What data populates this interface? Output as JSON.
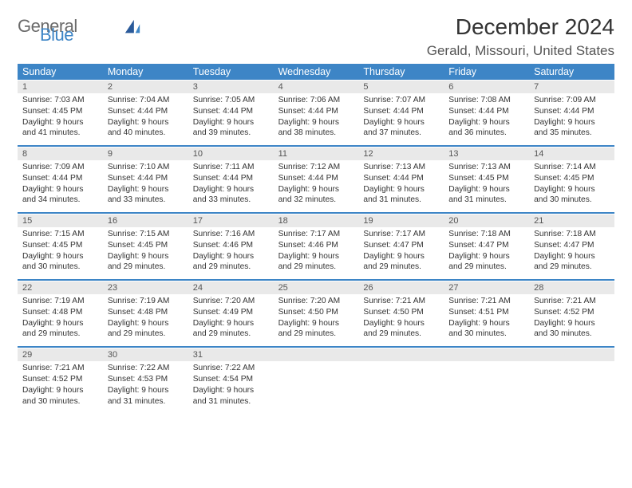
{
  "logo": {
    "word1": "General",
    "word2": "Blue"
  },
  "title": "December 2024",
  "location": "Gerald, Missouri, United States",
  "colors": {
    "header_bg": "#3d85c6",
    "header_text": "#ffffff",
    "daynum_bg": "#e9e9e9",
    "sep": "#3d85c6",
    "logo_gray": "#6a6a6a",
    "logo_blue": "#3d85c6"
  },
  "weekdays": [
    "Sunday",
    "Monday",
    "Tuesday",
    "Wednesday",
    "Thursday",
    "Friday",
    "Saturday"
  ],
  "weeks": [
    {
      "nums": [
        "1",
        "2",
        "3",
        "4",
        "5",
        "6",
        "7"
      ],
      "cells": [
        {
          "sunrise": "Sunrise: 7:03 AM",
          "sunset": "Sunset: 4:45 PM",
          "day1": "Daylight: 9 hours",
          "day2": "and 41 minutes."
        },
        {
          "sunrise": "Sunrise: 7:04 AM",
          "sunset": "Sunset: 4:44 PM",
          "day1": "Daylight: 9 hours",
          "day2": "and 40 minutes."
        },
        {
          "sunrise": "Sunrise: 7:05 AM",
          "sunset": "Sunset: 4:44 PM",
          "day1": "Daylight: 9 hours",
          "day2": "and 39 minutes."
        },
        {
          "sunrise": "Sunrise: 7:06 AM",
          "sunset": "Sunset: 4:44 PM",
          "day1": "Daylight: 9 hours",
          "day2": "and 38 minutes."
        },
        {
          "sunrise": "Sunrise: 7:07 AM",
          "sunset": "Sunset: 4:44 PM",
          "day1": "Daylight: 9 hours",
          "day2": "and 37 minutes."
        },
        {
          "sunrise": "Sunrise: 7:08 AM",
          "sunset": "Sunset: 4:44 PM",
          "day1": "Daylight: 9 hours",
          "day2": "and 36 minutes."
        },
        {
          "sunrise": "Sunrise: 7:09 AM",
          "sunset": "Sunset: 4:44 PM",
          "day1": "Daylight: 9 hours",
          "day2": "and 35 minutes."
        }
      ]
    },
    {
      "nums": [
        "8",
        "9",
        "10",
        "11",
        "12",
        "13",
        "14"
      ],
      "cells": [
        {
          "sunrise": "Sunrise: 7:09 AM",
          "sunset": "Sunset: 4:44 PM",
          "day1": "Daylight: 9 hours",
          "day2": "and 34 minutes."
        },
        {
          "sunrise": "Sunrise: 7:10 AM",
          "sunset": "Sunset: 4:44 PM",
          "day1": "Daylight: 9 hours",
          "day2": "and 33 minutes."
        },
        {
          "sunrise": "Sunrise: 7:11 AM",
          "sunset": "Sunset: 4:44 PM",
          "day1": "Daylight: 9 hours",
          "day2": "and 33 minutes."
        },
        {
          "sunrise": "Sunrise: 7:12 AM",
          "sunset": "Sunset: 4:44 PM",
          "day1": "Daylight: 9 hours",
          "day2": "and 32 minutes."
        },
        {
          "sunrise": "Sunrise: 7:13 AM",
          "sunset": "Sunset: 4:44 PM",
          "day1": "Daylight: 9 hours",
          "day2": "and 31 minutes."
        },
        {
          "sunrise": "Sunrise: 7:13 AM",
          "sunset": "Sunset: 4:45 PM",
          "day1": "Daylight: 9 hours",
          "day2": "and 31 minutes."
        },
        {
          "sunrise": "Sunrise: 7:14 AM",
          "sunset": "Sunset: 4:45 PM",
          "day1": "Daylight: 9 hours",
          "day2": "and 30 minutes."
        }
      ]
    },
    {
      "nums": [
        "15",
        "16",
        "17",
        "18",
        "19",
        "20",
        "21"
      ],
      "cells": [
        {
          "sunrise": "Sunrise: 7:15 AM",
          "sunset": "Sunset: 4:45 PM",
          "day1": "Daylight: 9 hours",
          "day2": "and 30 minutes."
        },
        {
          "sunrise": "Sunrise: 7:15 AM",
          "sunset": "Sunset: 4:45 PM",
          "day1": "Daylight: 9 hours",
          "day2": "and 29 minutes."
        },
        {
          "sunrise": "Sunrise: 7:16 AM",
          "sunset": "Sunset: 4:46 PM",
          "day1": "Daylight: 9 hours",
          "day2": "and 29 minutes."
        },
        {
          "sunrise": "Sunrise: 7:17 AM",
          "sunset": "Sunset: 4:46 PM",
          "day1": "Daylight: 9 hours",
          "day2": "and 29 minutes."
        },
        {
          "sunrise": "Sunrise: 7:17 AM",
          "sunset": "Sunset: 4:47 PM",
          "day1": "Daylight: 9 hours",
          "day2": "and 29 minutes."
        },
        {
          "sunrise": "Sunrise: 7:18 AM",
          "sunset": "Sunset: 4:47 PM",
          "day1": "Daylight: 9 hours",
          "day2": "and 29 minutes."
        },
        {
          "sunrise": "Sunrise: 7:18 AM",
          "sunset": "Sunset: 4:47 PM",
          "day1": "Daylight: 9 hours",
          "day2": "and 29 minutes."
        }
      ]
    },
    {
      "nums": [
        "22",
        "23",
        "24",
        "25",
        "26",
        "27",
        "28"
      ],
      "cells": [
        {
          "sunrise": "Sunrise: 7:19 AM",
          "sunset": "Sunset: 4:48 PM",
          "day1": "Daylight: 9 hours",
          "day2": "and 29 minutes."
        },
        {
          "sunrise": "Sunrise: 7:19 AM",
          "sunset": "Sunset: 4:48 PM",
          "day1": "Daylight: 9 hours",
          "day2": "and 29 minutes."
        },
        {
          "sunrise": "Sunrise: 7:20 AM",
          "sunset": "Sunset: 4:49 PM",
          "day1": "Daylight: 9 hours",
          "day2": "and 29 minutes."
        },
        {
          "sunrise": "Sunrise: 7:20 AM",
          "sunset": "Sunset: 4:50 PM",
          "day1": "Daylight: 9 hours",
          "day2": "and 29 minutes."
        },
        {
          "sunrise": "Sunrise: 7:21 AM",
          "sunset": "Sunset: 4:50 PM",
          "day1": "Daylight: 9 hours",
          "day2": "and 29 minutes."
        },
        {
          "sunrise": "Sunrise: 7:21 AM",
          "sunset": "Sunset: 4:51 PM",
          "day1": "Daylight: 9 hours",
          "day2": "and 30 minutes."
        },
        {
          "sunrise": "Sunrise: 7:21 AM",
          "sunset": "Sunset: 4:52 PM",
          "day1": "Daylight: 9 hours",
          "day2": "and 30 minutes."
        }
      ]
    },
    {
      "nums": [
        "29",
        "30",
        "31",
        "",
        "",
        "",
        ""
      ],
      "cells": [
        {
          "sunrise": "Sunrise: 7:21 AM",
          "sunset": "Sunset: 4:52 PM",
          "day1": "Daylight: 9 hours",
          "day2": "and 30 minutes."
        },
        {
          "sunrise": "Sunrise: 7:22 AM",
          "sunset": "Sunset: 4:53 PM",
          "day1": "Daylight: 9 hours",
          "day2": "and 31 minutes."
        },
        {
          "sunrise": "Sunrise: 7:22 AM",
          "sunset": "Sunset: 4:54 PM",
          "day1": "Daylight: 9 hours",
          "day2": "and 31 minutes."
        },
        null,
        null,
        null,
        null
      ]
    }
  ]
}
